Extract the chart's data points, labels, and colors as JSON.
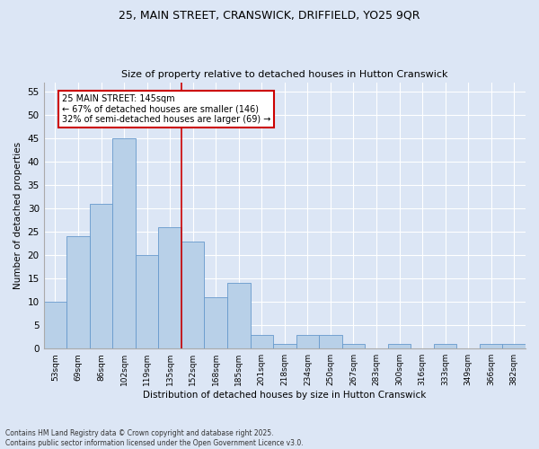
{
  "title1": "25, MAIN STREET, CRANSWICK, DRIFFIELD, YO25 9QR",
  "title2": "Size of property relative to detached houses in Hutton Cranswick",
  "xlabel": "Distribution of detached houses by size in Hutton Cranswick",
  "ylabel": "Number of detached properties",
  "categories": [
    "53sqm",
    "69sqm",
    "86sqm",
    "102sqm",
    "119sqm",
    "135sqm",
    "152sqm",
    "168sqm",
    "185sqm",
    "201sqm",
    "218sqm",
    "234sqm",
    "250sqm",
    "267sqm",
    "283sqm",
    "300sqm",
    "316sqm",
    "333sqm",
    "349sqm",
    "366sqm",
    "382sqm"
  ],
  "values": [
    10,
    24,
    31,
    45,
    20,
    26,
    23,
    11,
    14,
    3,
    1,
    3,
    3,
    1,
    0,
    1,
    0,
    1,
    0,
    1,
    1
  ],
  "bar_color": "#b8d0e8",
  "bar_edge_color": "#6699cc",
  "background_color": "#dce6f5",
  "fig_color": "#dce6f5",
  "grid_color": "#ffffff",
  "red_line_x": 5.5,
  "annotation_text": "25 MAIN STREET: 145sqm\n← 67% of detached houses are smaller (146)\n32% of semi-detached houses are larger (69) →",
  "annotation_box_color": "#ffffff",
  "annotation_border_color": "#cc0000",
  "footer_text": "Contains HM Land Registry data © Crown copyright and database right 2025.\nContains public sector information licensed under the Open Government Licence v3.0.",
  "ylim": [
    0,
    57
  ],
  "yticks": [
    0,
    5,
    10,
    15,
    20,
    25,
    30,
    35,
    40,
    45,
    50,
    55
  ]
}
